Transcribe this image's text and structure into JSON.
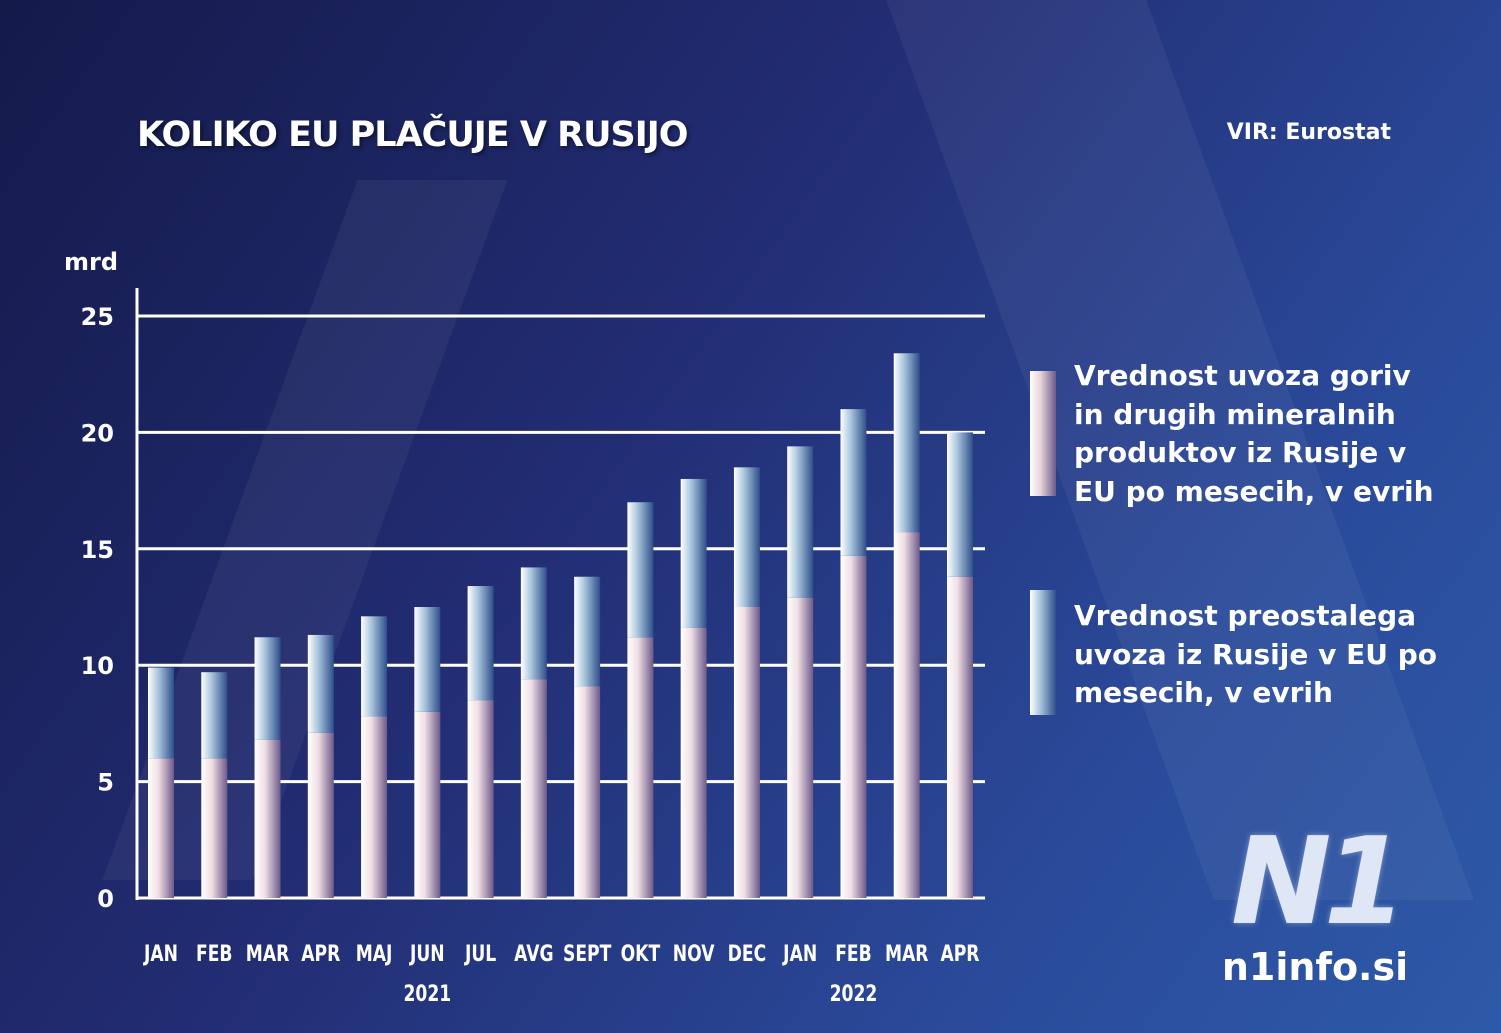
{
  "title": "KOLIKO EU PLAČUJE V RUSIJO",
  "source": "VIR: Eurostat",
  "logo": {
    "mark": "N1",
    "url": "n1info.si"
  },
  "colors": {
    "fuel": "#e8d4dc",
    "other": "#5c86b4",
    "grid": "#ffffff"
  },
  "chart_data": {
    "type": "bar",
    "stacked": true,
    "ylabel": "mrd",
    "ylim": [
      0,
      25
    ],
    "yticks": [
      0,
      5,
      10,
      15,
      20,
      25
    ],
    "grid": true,
    "legend_placement": "right",
    "categories": [
      "JAN",
      "FEB",
      "MAR",
      "APR",
      "MAJ",
      "JUN",
      "JUL",
      "AVG",
      "SEPT",
      "OKT",
      "NOV",
      "DEC",
      "JAN",
      "FEB",
      "MAR",
      "APR"
    ],
    "year_labels": [
      {
        "label": "2021",
        "at": "JUN"
      },
      {
        "label": "2022",
        "at": "FEB"
      }
    ],
    "series": [
      {
        "name": "Vrednost uvoza goriv in drugih mineralnih produktov iz Rusije v EU po mesecih, v evrih",
        "values": [
          6.0,
          6.0,
          6.8,
          7.1,
          7.8,
          8.0,
          8.5,
          9.4,
          9.1,
          11.2,
          11.6,
          12.5,
          12.9,
          14.7,
          15.7,
          13.8
        ]
      },
      {
        "name": "Vrednost preostalega uvoza iz Rusije v EU po mesecih, v evrih",
        "values": [
          3.9,
          3.7,
          4.4,
          4.2,
          4.3,
          4.5,
          4.9,
          4.8,
          4.7,
          5.8,
          6.4,
          6.0,
          6.5,
          6.3,
          7.7,
          6.2
        ]
      }
    ]
  }
}
